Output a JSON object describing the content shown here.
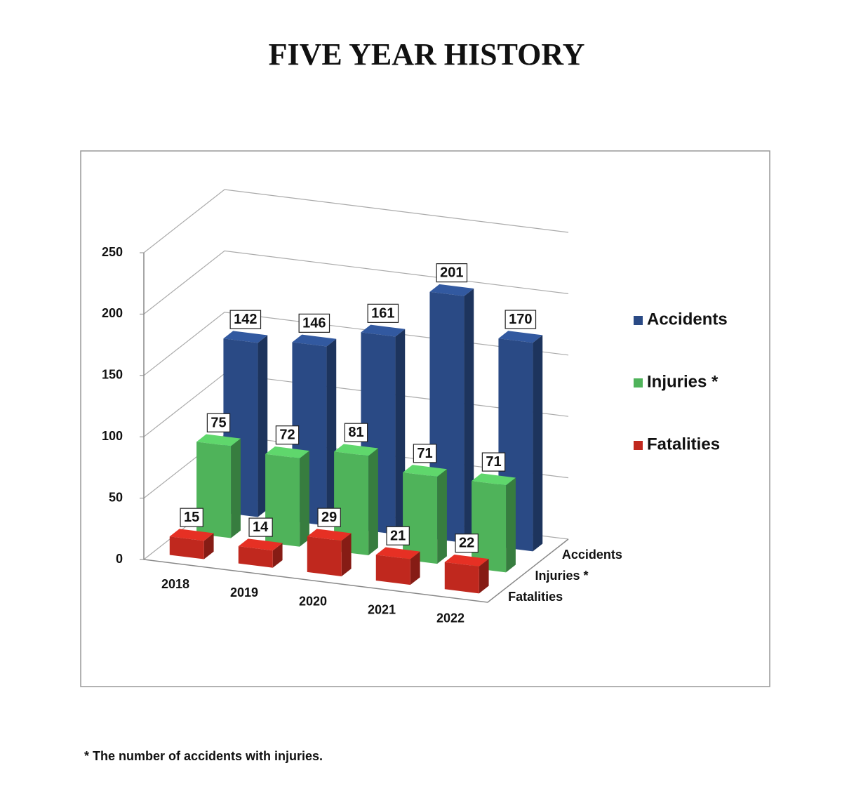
{
  "chart_data": {
    "type": "bar3d",
    "title": "FIVE YEAR HISTORY",
    "categories": [
      "2018",
      "2019",
      "2020",
      "2021",
      "2022"
    ],
    "series": [
      {
        "name": "Fatalities",
        "color": "#c0281e",
        "values": [
          15,
          14,
          29,
          21,
          22
        ]
      },
      {
        "name": "Injuries *",
        "color": "#4fb35a",
        "values": [
          75,
          72,
          81,
          71,
          71
        ]
      },
      {
        "name": "Accidents",
        "color": "#2a4a85",
        "values": [
          142,
          146,
          161,
          201,
          170
        ]
      }
    ],
    "ylim": [
      0,
      250
    ],
    "yticks": [
      0,
      50,
      100,
      150,
      200,
      250
    ],
    "grid": true,
    "legend": "right",
    "note": "* The number of accidents with injuries."
  }
}
